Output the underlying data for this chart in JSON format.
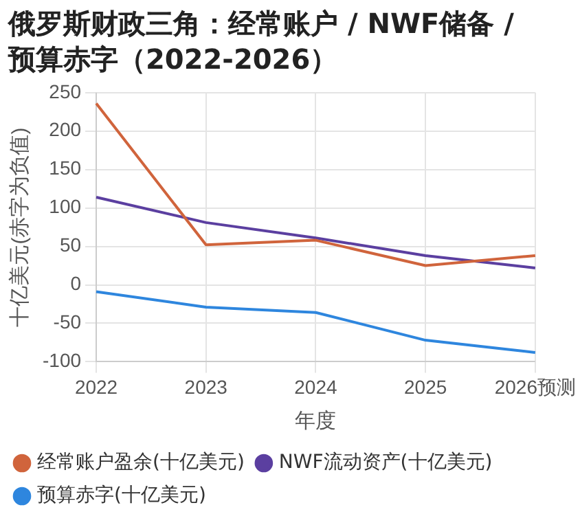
{
  "chart_data": {
    "type": "line",
    "title": "俄罗斯财政三角：经常账户 / NWF储备 / 预算赤字（2022-2026）",
    "xlabel": "年度",
    "ylabel": "十亿美元(赤字为负值)",
    "categories": [
      "2022",
      "2023",
      "2024",
      "2025",
      "2026预测"
    ],
    "series": [
      {
        "name": "经常账户盈余(十亿美元)",
        "color": "#d0643c",
        "values": [
          236,
          52,
          58,
          25,
          38
        ]
      },
      {
        "name": "NWF流动资产(十亿美元)",
        "color": "#5b3fa0",
        "values": [
          114,
          81,
          61,
          38,
          22
        ]
      },
      {
        "name": "预算赤字(十亿美元)",
        "color": "#2e86de",
        "values": [
          -9,
          -29,
          -36,
          -72,
          -88
        ]
      }
    ],
    "ylim": [
      -100,
      250
    ],
    "yticks": [
      -100,
      -50,
      0,
      50,
      100,
      150,
      200,
      250
    ],
    "grid": true,
    "legend": "bottom",
    "marker": "none",
    "line_style": "solid"
  }
}
